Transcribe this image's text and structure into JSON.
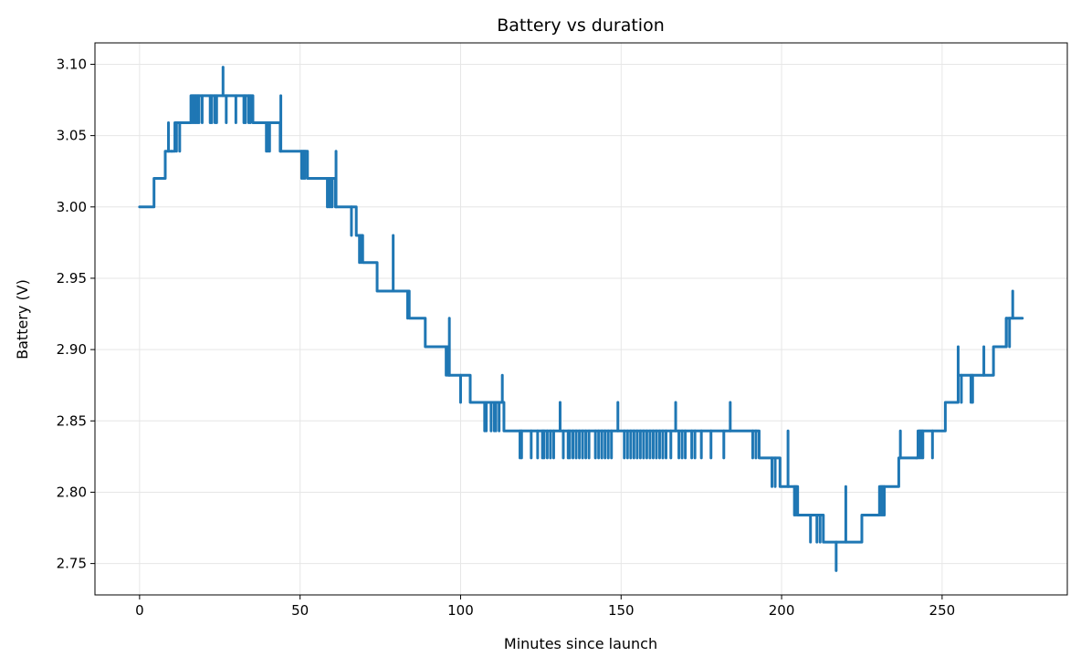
{
  "chart_data": {
    "type": "line",
    "title": "Battery vs duration",
    "xlabel": "Minutes since launch",
    "ylabel": "Battery (V)",
    "xlim": [
      -13.9,
      289
    ],
    "ylim": [
      2.728,
      3.115
    ],
    "xticks": [
      0,
      50,
      100,
      150,
      200,
      250
    ],
    "xtick_labels": [
      "0",
      "50",
      "100",
      "150",
      "200",
      "250"
    ],
    "yticks": [
      2.75,
      2.8,
      2.85,
      2.9,
      2.95,
      3.0,
      3.05,
      3.1
    ],
    "ytick_labels": [
      "2.75",
      "2.80",
      "2.85",
      "2.90",
      "2.95",
      "3.00",
      "3.05",
      "3.10"
    ],
    "grid": true,
    "color": "#1f77b4",
    "series": [
      {
        "steps": [
          [
            0,
            3.0
          ],
          [
            4.5,
            3.02
          ],
          [
            8,
            3.039
          ],
          [
            11,
            3.059
          ],
          [
            16,
            3.078
          ],
          [
            35.3,
            3.059
          ],
          [
            43.8,
            3.039
          ],
          [
            52.3,
            3.02
          ],
          [
            61,
            3.0
          ],
          [
            67.5,
            2.98
          ],
          [
            69.5,
            2.961
          ],
          [
            74,
            2.941
          ],
          [
            84,
            2.922
          ],
          [
            89,
            2.902
          ],
          [
            96,
            2.882
          ],
          [
            103,
            2.863
          ],
          [
            113.5,
            2.843
          ],
          [
            193,
            2.824
          ],
          [
            199.5,
            2.804
          ],
          [
            205,
            2.784
          ],
          [
            213,
            2.765
          ],
          [
            225,
            2.784
          ],
          [
            230.5,
            2.804
          ],
          [
            236.5,
            2.824
          ],
          [
            242.5,
            2.843
          ],
          [
            251,
            2.863
          ],
          [
            255,
            2.882
          ],
          [
            263,
            2.882
          ],
          [
            266,
            2.902
          ],
          [
            270,
            2.922
          ],
          [
            275,
            2.922
          ]
        ],
        "spikes": [
          [
            9,
            3.059
          ],
          [
            10,
            3.039
          ],
          [
            11.5,
            3.039
          ],
          [
            12.5,
            3.039
          ],
          [
            16.5,
            3.059
          ],
          [
            17,
            3.059
          ],
          [
            17.5,
            3.059
          ],
          [
            18,
            3.059
          ],
          [
            18.5,
            3.059
          ],
          [
            19.5,
            3.059
          ],
          [
            22,
            3.059
          ],
          [
            22.5,
            3.059
          ],
          [
            23.5,
            3.059
          ],
          [
            24,
            3.059
          ],
          [
            26,
            3.098
          ],
          [
            27,
            3.059
          ],
          [
            30,
            3.059
          ],
          [
            32.5,
            3.059
          ],
          [
            33,
            3.059
          ],
          [
            34,
            3.059
          ],
          [
            34.5,
            3.059
          ],
          [
            39.5,
            3.039
          ],
          [
            40,
            3.039
          ],
          [
            40.5,
            3.039
          ],
          [
            44,
            3.078
          ],
          [
            50.5,
            3.02
          ],
          [
            51,
            3.02
          ],
          [
            51.5,
            3.02
          ],
          [
            58.5,
            3.0
          ],
          [
            59,
            3.0
          ],
          [
            59.5,
            3.0
          ],
          [
            60,
            3.0
          ],
          [
            61.2,
            3.039
          ],
          [
            66,
            2.98
          ],
          [
            68.5,
            2.961
          ],
          [
            69,
            2.961
          ],
          [
            75,
            2.941
          ],
          [
            75.5,
            2.941
          ],
          [
            76,
            2.941
          ],
          [
            76.5,
            2.941
          ],
          [
            77,
            2.941
          ],
          [
            78,
            2.941
          ],
          [
            79,
            2.98
          ],
          [
            83.5,
            2.922
          ],
          [
            95.5,
            2.882
          ],
          [
            96.5,
            2.922
          ],
          [
            100,
            2.863
          ],
          [
            107.5,
            2.843
          ],
          [
            108,
            2.843
          ],
          [
            109.5,
            2.843
          ],
          [
            110.5,
            2.843
          ],
          [
            111,
            2.843
          ],
          [
            112,
            2.843
          ],
          [
            113,
            2.882
          ],
          [
            118.5,
            2.824
          ],
          [
            119,
            2.824
          ],
          [
            122,
            2.824
          ],
          [
            124,
            2.824
          ],
          [
            125.5,
            2.824
          ],
          [
            126,
            2.824
          ],
          [
            127,
            2.824
          ],
          [
            128,
            2.824
          ],
          [
            129,
            2.824
          ],
          [
            131,
            2.863
          ],
          [
            132,
            2.824
          ],
          [
            133.5,
            2.824
          ],
          [
            134,
            2.824
          ],
          [
            135,
            2.824
          ],
          [
            136,
            2.824
          ],
          [
            137,
            2.824
          ],
          [
            138,
            2.824
          ],
          [
            139,
            2.824
          ],
          [
            140,
            2.824
          ],
          [
            142,
            2.824
          ],
          [
            143,
            2.824
          ],
          [
            144,
            2.824
          ],
          [
            145,
            2.824
          ],
          [
            146,
            2.824
          ],
          [
            147,
            2.824
          ],
          [
            149,
            2.863
          ],
          [
            151,
            2.824
          ],
          [
            152,
            2.824
          ],
          [
            153,
            2.824
          ],
          [
            154,
            2.824
          ],
          [
            155,
            2.824
          ],
          [
            156,
            2.824
          ],
          [
            157,
            2.824
          ],
          [
            158,
            2.824
          ],
          [
            159,
            2.824
          ],
          [
            160,
            2.824
          ],
          [
            161,
            2.824
          ],
          [
            162,
            2.824
          ],
          [
            163,
            2.824
          ],
          [
            164,
            2.824
          ],
          [
            165.5,
            2.824
          ],
          [
            167,
            2.863
          ],
          [
            168,
            2.824
          ],
          [
            169,
            2.824
          ],
          [
            170,
            2.824
          ],
          [
            172,
            2.824
          ],
          [
            173,
            2.824
          ],
          [
            175,
            2.824
          ],
          [
            178,
            2.824
          ],
          [
            182,
            2.824
          ],
          [
            184,
            2.863
          ],
          [
            191,
            2.824
          ],
          [
            192,
            2.824
          ],
          [
            197,
            2.804
          ],
          [
            198,
            2.804
          ],
          [
            202,
            2.843
          ],
          [
            204,
            2.784
          ],
          [
            204.5,
            2.784
          ],
          [
            205.5,
            2.784
          ],
          [
            209,
            2.765
          ],
          [
            211,
            2.765
          ],
          [
            212,
            2.765
          ],
          [
            217,
            2.745
          ],
          [
            220,
            2.804
          ],
          [
            231,
            2.784
          ],
          [
            231.5,
            2.784
          ],
          [
            232,
            2.784
          ],
          [
            237,
            2.843
          ],
          [
            242,
            2.824
          ],
          [
            243,
            2.824
          ],
          [
            243.5,
            2.824
          ],
          [
            244,
            2.824
          ],
          [
            247,
            2.824
          ],
          [
            254.5,
            2.863
          ],
          [
            255,
            2.902
          ],
          [
            256,
            2.863
          ],
          [
            259,
            2.863
          ],
          [
            259.5,
            2.863
          ],
          [
            263,
            2.902
          ],
          [
            270,
            2.902
          ],
          [
            271,
            2.902
          ],
          [
            272,
            2.941
          ]
        ]
      }
    ]
  }
}
